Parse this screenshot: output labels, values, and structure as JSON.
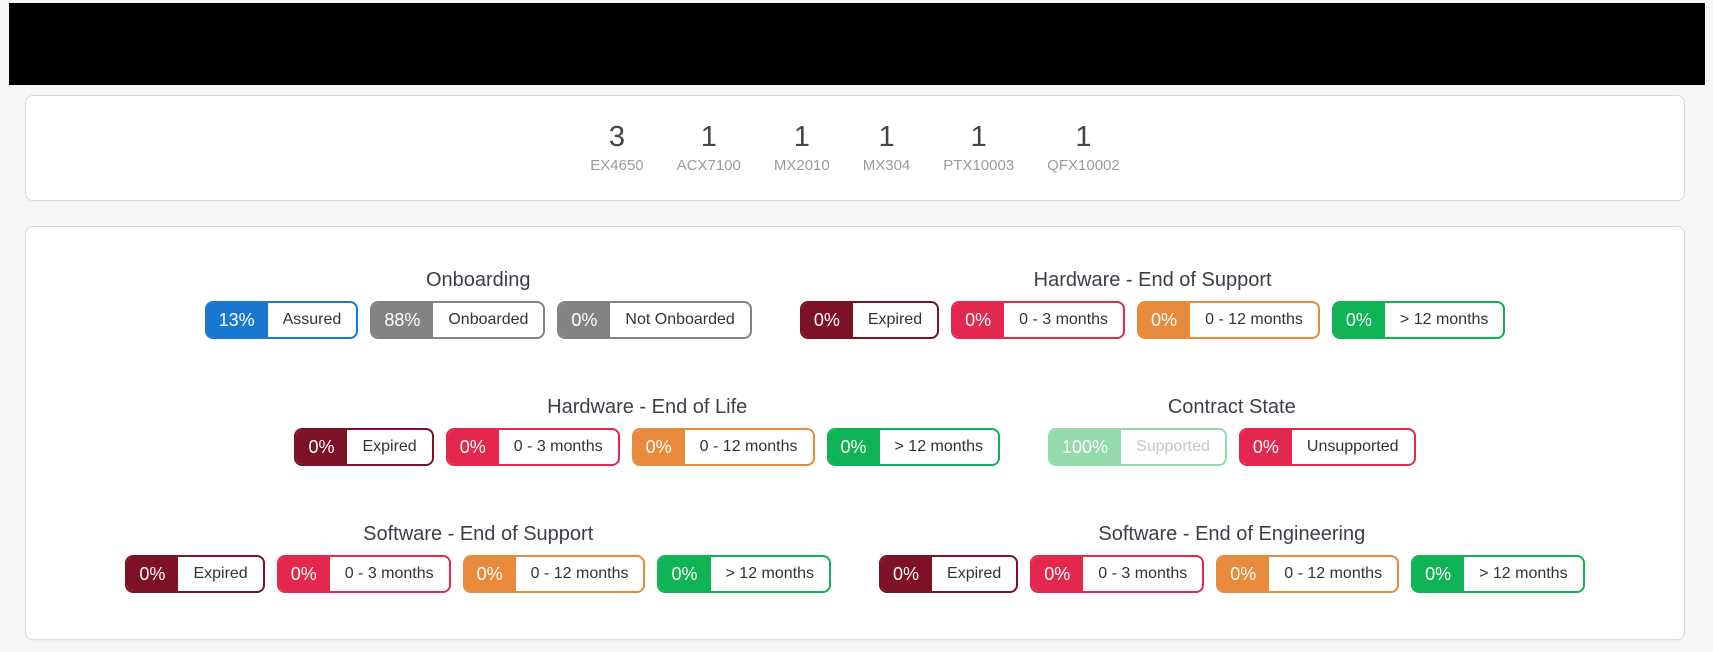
{
  "colors": {
    "page_bg": "#f7f7f7",
    "blue": "#1777d1",
    "gray": "#838383",
    "dark_red": "#7d1126",
    "red": "#e4284d",
    "orange": "#e78a3b",
    "green": "#0fb254",
    "light_green": "#94daab",
    "muted_label": "#c4c6ca"
  },
  "device_counts": [
    {
      "count": "3",
      "model": "EX4650"
    },
    {
      "count": "1",
      "model": "ACX7100"
    },
    {
      "count": "1",
      "model": "MX2010"
    },
    {
      "count": "1",
      "model": "MX304"
    },
    {
      "count": "1",
      "model": "PTX10003"
    },
    {
      "count": "1",
      "model": "QFX10002"
    }
  ],
  "status_rows": [
    [
      {
        "title": "Onboarding",
        "badges": [
          {
            "pct": "13%",
            "label": "Assured",
            "color": "#1777d1"
          },
          {
            "pct": "88%",
            "label": "Onboarded",
            "color": "#838383"
          },
          {
            "pct": "0%",
            "label": "Not Onboarded",
            "color": "#838383"
          }
        ]
      },
      {
        "title": "Hardware - End of Support",
        "badges": [
          {
            "pct": "0%",
            "label": "Expired",
            "color": "#7d1126"
          },
          {
            "pct": "0%",
            "label": "0 - 3 months",
            "color": "#e4284d"
          },
          {
            "pct": "0%",
            "label": "0 - 12 months",
            "color": "#e78a3b"
          },
          {
            "pct": "0%",
            "label": "> 12 months",
            "color": "#0fb254"
          }
        ]
      }
    ],
    [
      {
        "title": "Hardware - End of Life",
        "badges": [
          {
            "pct": "0%",
            "label": "Expired",
            "color": "#7d1126"
          },
          {
            "pct": "0%",
            "label": "0 - 3 months",
            "color": "#e4284d"
          },
          {
            "pct": "0%",
            "label": "0 - 12 months",
            "color": "#e78a3b"
          },
          {
            "pct": "0%",
            "label": "> 12 months",
            "color": "#0fb254"
          }
        ]
      },
      {
        "title": "Contract State",
        "badges": [
          {
            "pct": "100%",
            "label": "Supported",
            "color": "#94daab",
            "label_color": "#c4c6ca"
          },
          {
            "pct": "0%",
            "label": "Unsupported",
            "color": "#e4284d"
          }
        ]
      }
    ],
    [
      {
        "title": "Software - End of Support",
        "badges": [
          {
            "pct": "0%",
            "label": "Expired",
            "color": "#7d1126"
          },
          {
            "pct": "0%",
            "label": "0 - 3 months",
            "color": "#e4284d"
          },
          {
            "pct": "0%",
            "label": "0 - 12 months",
            "color": "#e78a3b"
          },
          {
            "pct": "0%",
            "label": "> 12 months",
            "color": "#0fb254"
          }
        ]
      },
      {
        "title": "Software - End of Engineering",
        "badges": [
          {
            "pct": "0%",
            "label": "Expired",
            "color": "#7d1126"
          },
          {
            "pct": "0%",
            "label": "0 - 3 months",
            "color": "#e4284d"
          },
          {
            "pct": "0%",
            "label": "0 - 12 months",
            "color": "#e78a3b"
          },
          {
            "pct": "0%",
            "label": "> 12 months",
            "color": "#0fb254"
          }
        ]
      }
    ]
  ]
}
